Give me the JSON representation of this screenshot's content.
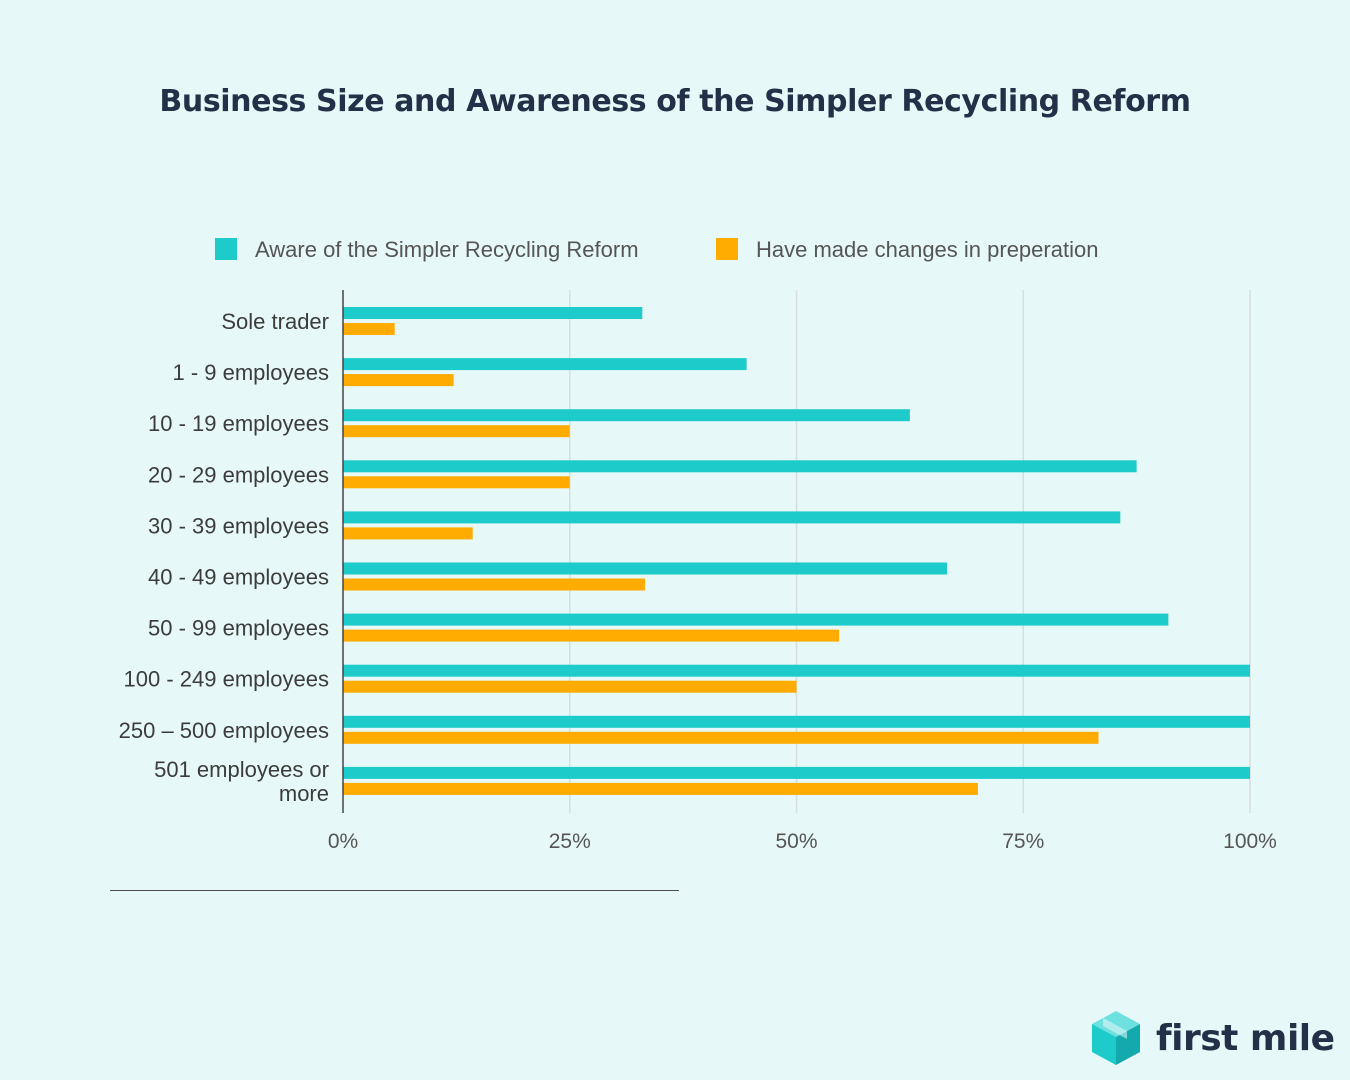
{
  "title": "Business Size and Awareness of the Simpler Recycling Reform",
  "brand": {
    "name": "first mile",
    "logo_icon": "cube-logo-icon",
    "logo_color": "#1ecbcb"
  },
  "colors": {
    "aware": "#1ecbcb",
    "changes": "#ffab00",
    "axis": "#555555",
    "grid": "#d6dede"
  },
  "chart_data": {
    "type": "bar",
    "orientation": "horizontal",
    "title": "Business Size and Awareness of the Simpler Recycling Reform",
    "categories": [
      [
        "Sole trader"
      ],
      [
        "1 - 9 employees"
      ],
      [
        "10 - 19 employees"
      ],
      [
        "20 - 29 employees"
      ],
      [
        "30 - 39 employees"
      ],
      [
        "40 - 49 employees"
      ],
      [
        "50 - 99 employees"
      ],
      [
        "100 - 249 employees"
      ],
      [
        "250 – 500 employees"
      ],
      [
        "501 employees or",
        "more"
      ]
    ],
    "series": [
      {
        "name": "Aware of the Simpler Recycling Reform",
        "color": "#1ecbcb",
        "values": [
          33,
          44.5,
          62.5,
          87.5,
          85.7,
          66.6,
          91,
          100,
          100,
          100
        ]
      },
      {
        "name": "Have made changes in preperation",
        "color": "#ffab00",
        "values": [
          5.7,
          12.2,
          25,
          25,
          14.3,
          33.3,
          54.7,
          50,
          83.3,
          70
        ]
      }
    ],
    "xlim": [
      0,
      100
    ],
    "xticks": [
      "0%",
      "25%",
      "50%",
      "75%",
      "100%"
    ],
    "legend_position": "top",
    "grid": true
  }
}
